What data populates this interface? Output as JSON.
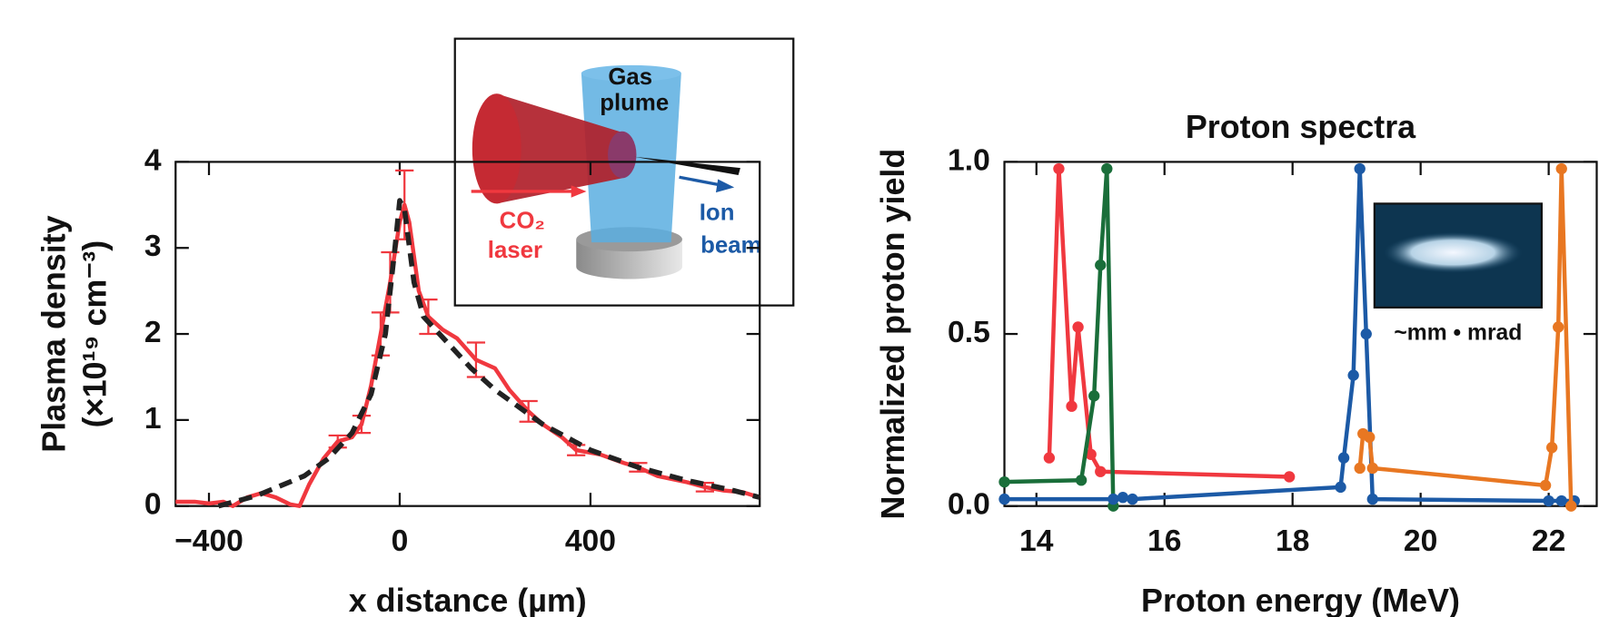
{
  "chart_data": [
    {
      "type": "line",
      "xlabel": "x distance (µm)",
      "ylabel": [
        "Plasma density",
        "(×10¹⁹ cm⁻³)"
      ],
      "xlim": [
        -470,
        755
      ],
      "ylim": [
        0,
        4
      ],
      "xticks": [
        {
          "value": -400,
          "label": "−400"
        },
        0,
        400
      ],
      "yticks": [
        0,
        1,
        2,
        3,
        4
      ],
      "series": [
        {
          "color": "#f0383f",
          "dashed": false,
          "markers": false,
          "x": [
            -470,
            -430,
            -400,
            -370,
            -350,
            -320,
            -290,
            -260,
            -230,
            -210,
            -190,
            -160,
            -130,
            -100,
            -80,
            -60,
            -40,
            -20,
            0,
            10,
            20,
            40,
            60,
            90,
            120,
            160,
            200,
            230,
            270,
            300,
            340,
            370,
            420,
            470,
            500,
            540,
            600,
            640,
            680,
            720,
            755
          ],
          "values": [
            0.05,
            0.05,
            0.03,
            0.05,
            0.0,
            0.1,
            0.15,
            0.1,
            0.02,
            0.0,
            0.25,
            0.55,
            0.75,
            0.8,
            0.95,
            1.4,
            2.0,
            2.6,
            3.3,
            3.5,
            3.3,
            2.5,
            2.2,
            2.05,
            1.95,
            1.7,
            1.6,
            1.35,
            1.1,
            0.95,
            0.8,
            0.65,
            0.6,
            0.5,
            0.45,
            0.35,
            0.28,
            0.22,
            0.18,
            0.16,
            0.1
          ],
          "errors": [
            null,
            null,
            null,
            null,
            null,
            null,
            null,
            null,
            null,
            null,
            null,
            null,
            0.07,
            null,
            0.1,
            null,
            0.25,
            0.35,
            null,
            0.4,
            null,
            null,
            0.2,
            null,
            null,
            0.2,
            null,
            null,
            0.12,
            null,
            null,
            0.06,
            null,
            null,
            0.05,
            null,
            null,
            0.05,
            null,
            null,
            null
          ]
        },
        {
          "color": "#222222",
          "dashed": true,
          "markers": false,
          "x": [
            -380,
            -300,
            -200,
            -150,
            -100,
            -60,
            -30,
            -10,
            0,
            10,
            30,
            50,
            100,
            150,
            200,
            300,
            400,
            500,
            600,
            700,
            755
          ],
          "values": [
            0.0,
            0.12,
            0.35,
            0.55,
            0.85,
            1.3,
            2.0,
            3.0,
            3.55,
            3.45,
            2.6,
            2.2,
            1.9,
            1.6,
            1.35,
            0.95,
            0.65,
            0.45,
            0.3,
            0.18,
            0.1
          ]
        }
      ]
    },
    {
      "type": "line",
      "title": "Proton spectra",
      "xlabel": "Proton energy (MeV)",
      "ylabel": [
        "Normalized proton yield"
      ],
      "xlim": [
        13.5,
        22.75
      ],
      "ylim": [
        0,
        1
      ],
      "xticks": [
        14,
        16,
        18,
        20,
        22
      ],
      "yticks": [
        {
          "value": 0,
          "label": "0.0"
        },
        0.5,
        {
          "value": 1,
          "label": "1.0"
        }
      ],
      "series": [
        {
          "color": "#f0383f",
          "dashed": false,
          "markers": true,
          "x": [
            14.2,
            14.35,
            14.55,
            14.65,
            14.85,
            15.0,
            17.95
          ],
          "values": [
            0.14,
            0.98,
            0.29,
            0.52,
            0.15,
            0.1,
            0.085
          ]
        },
        {
          "color": "#1a6e3a",
          "dashed": false,
          "markers": true,
          "x": [
            13.5,
            14.7,
            14.9,
            15.0,
            15.1,
            15.2
          ],
          "values": [
            0.07,
            0.075,
            0.32,
            0.7,
            0.98,
            0.0
          ]
        },
        {
          "color": "#1c5aa6",
          "dashed": false,
          "markers": true,
          "x": [
            13.5,
            15.2,
            15.35,
            15.5,
            18.75,
            18.8,
            18.95,
            19.05,
            19.15,
            19.25,
            22.0,
            22.2,
            22.4
          ],
          "values": [
            0.02,
            0.02,
            0.025,
            0.02,
            0.055,
            0.14,
            0.38,
            0.98,
            0.5,
            0.02,
            0.015,
            0.015,
            0.015
          ]
        },
        {
          "color": "#e87722",
          "dashed": false,
          "markers": true,
          "x": [
            19.05,
            19.1,
            19.2,
            19.25,
            21.95,
            22.05,
            22.15,
            22.2,
            22.35
          ],
          "values": [
            0.11,
            0.21,
            0.2,
            0.11,
            0.06,
            0.17,
            0.52,
            0.98,
            0.0
          ]
        }
      ]
    }
  ],
  "diagram": {
    "gas": [
      "Gas",
      "plume"
    ],
    "laser": [
      "CO₂",
      "laser"
    ],
    "ion": [
      "Ion",
      "beam"
    ]
  },
  "beam_image": {
    "caption": "~mm • mrad"
  }
}
